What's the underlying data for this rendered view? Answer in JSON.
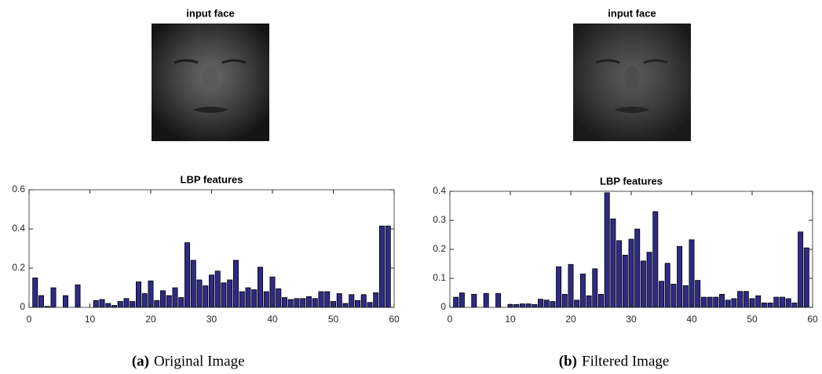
{
  "panels": [
    {
      "image_title": "input face",
      "caption_label": "(a)",
      "caption": "Original Image"
    },
    {
      "image_title": "input face",
      "caption_label": "(b)",
      "caption": "Filtered Image"
    }
  ],
  "chart_data": [
    {
      "type": "bar",
      "title": "LBP features",
      "color": "#2f2a86",
      "x": [
        1,
        2,
        3,
        4,
        5,
        6,
        7,
        8,
        9,
        10,
        11,
        12,
        13,
        14,
        15,
        16,
        17,
        18,
        19,
        20,
        21,
        22,
        23,
        24,
        25,
        26,
        27,
        28,
        29,
        30,
        31,
        32,
        33,
        34,
        35,
        36,
        37,
        38,
        39,
        40,
        41,
        42,
        43,
        44,
        45,
        46,
        47,
        48,
        49,
        50,
        51,
        52,
        53,
        54,
        55,
        56,
        57,
        58,
        59
      ],
      "values": [
        0.15,
        0.06,
        0.005,
        0.1,
        0,
        0.06,
        0,
        0.115,
        0,
        0,
        0.035,
        0.04,
        0.02,
        0.01,
        0.03,
        0.045,
        0.03,
        0.13,
        0.07,
        0.135,
        0.035,
        0.085,
        0.06,
        0.1,
        0.05,
        0.33,
        0.24,
        0.14,
        0.11,
        0.165,
        0.185,
        0.125,
        0.14,
        0.24,
        0.08,
        0.1,
        0.09,
        0.205,
        0.08,
        0.155,
        0.095,
        0.05,
        0.04,
        0.045,
        0.045,
        0.055,
        0.045,
        0.08,
        0.08,
        0.03,
        0.07,
        0.02,
        0.065,
        0.035,
        0.065,
        0.025,
        0.075,
        0.415,
        0.415
      ],
      "xlim": [
        0,
        60
      ],
      "xticks": [
        0,
        10,
        20,
        30,
        40,
        50,
        60
      ],
      "ylim": [
        0,
        0.6
      ],
      "yticks": [
        0,
        0.2,
        0.4,
        0.6
      ],
      "grid": false
    },
    {
      "type": "bar",
      "title": "LBP features",
      "color": "#2f2a86",
      "x": [
        1,
        2,
        3,
        4,
        5,
        6,
        7,
        8,
        9,
        10,
        11,
        12,
        13,
        14,
        15,
        16,
        17,
        18,
        19,
        20,
        21,
        22,
        23,
        24,
        25,
        26,
        27,
        28,
        29,
        30,
        31,
        32,
        33,
        34,
        35,
        36,
        37,
        38,
        39,
        40,
        41,
        42,
        43,
        44,
        45,
        46,
        47,
        48,
        49,
        50,
        51,
        52,
        53,
        54,
        55,
        56,
        57,
        58,
        59
      ],
      "values": [
        0.035,
        0.05,
        0,
        0.045,
        0,
        0.048,
        0,
        0.048,
        0,
        0.01,
        0.01,
        0.012,
        0.012,
        0.01,
        0.028,
        0.025,
        0.02,
        0.14,
        0.045,
        0.148,
        0.025,
        0.115,
        0.04,
        0.133,
        0.045,
        0.395,
        0.305,
        0.23,
        0.18,
        0.235,
        0.27,
        0.16,
        0.19,
        0.33,
        0.09,
        0.152,
        0.08,
        0.21,
        0.075,
        0.233,
        0.093,
        0.035,
        0.035,
        0.035,
        0.045,
        0.025,
        0.03,
        0.055,
        0.055,
        0.03,
        0.04,
        0.015,
        0.015,
        0.035,
        0.035,
        0.03,
        0.015,
        0.26,
        0.205
      ],
      "xlim": [
        0,
        60
      ],
      "xticks": [
        0,
        10,
        20,
        30,
        40,
        50,
        60
      ],
      "ylim": [
        0,
        0.4
      ],
      "yticks": [
        0,
        0.1,
        0.2,
        0.3,
        0.4
      ],
      "grid": false
    }
  ]
}
